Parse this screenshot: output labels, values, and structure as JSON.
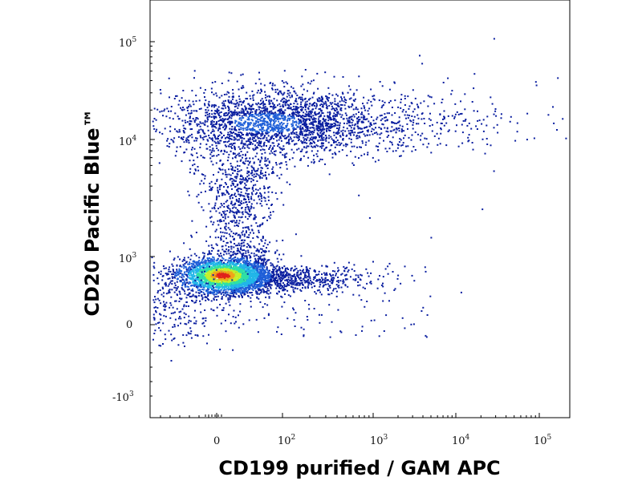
{
  "chart_data": {
    "type": "scatter",
    "style": "density flow-cytometry dot plot",
    "xlabel": "CD199 purified / GAM APC",
    "ylabel": "CD20 Pacific Blue™",
    "x_scale": "biexponential",
    "y_scale": "biexponential",
    "x_ticks": [
      {
        "label": "0",
        "exp": ""
      },
      {
        "label": "10",
        "exp": "2"
      },
      {
        "label": "10",
        "exp": "3"
      },
      {
        "label": "10",
        "exp": "4"
      },
      {
        "label": "10",
        "exp": "5"
      }
    ],
    "y_ticks": [
      {
        "label": "10",
        "exp": "5"
      },
      {
        "label": "10",
        "exp": "4"
      },
      {
        "label": "10",
        "exp": "3"
      },
      {
        "label": "0",
        "exp": ""
      },
      {
        "label": "-10",
        "exp": "3"
      }
    ],
    "populations": [
      {
        "description": "CD20 bright B cells",
        "center": {
          "x": 50,
          "y": 15000
        },
        "relative_density": "medium",
        "shape": "broad band, tail toward high CD199"
      },
      {
        "description": "CD20 negative cells",
        "center": {
          "x": 5,
          "y": 350
        },
        "relative_density": "very high",
        "shape": "compact ellipse, tail toward higher CD199"
      },
      {
        "description": "bridge of intermediate CD20 events",
        "center": {
          "x": 20,
          "y": 2000
        },
        "relative_density": "low"
      }
    ],
    "colormap": [
      "#0a1ea0",
      "#1f5fd8",
      "#22b6e8",
      "#2fe0a6",
      "#c4ef2b",
      "#f0a51a",
      "#e0221b"
    ],
    "grid": false,
    "legend": "none"
  }
}
